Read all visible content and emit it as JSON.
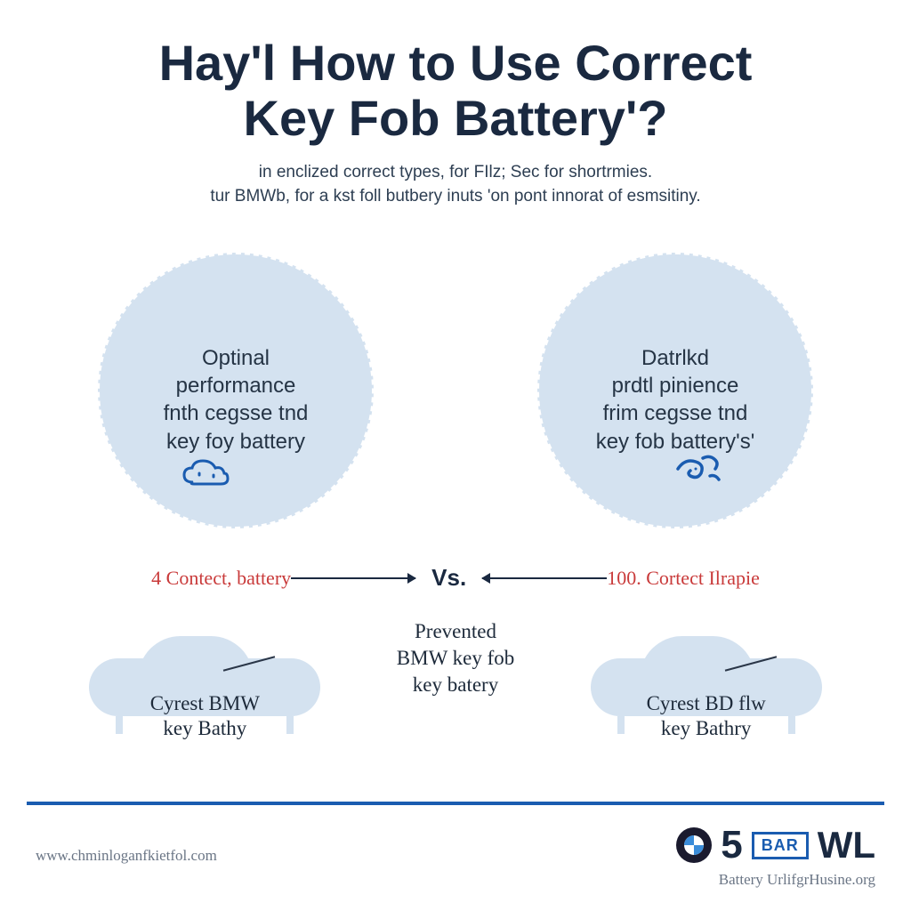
{
  "colors": {
    "title": "#1a2940",
    "subtitle": "#2d3e52",
    "circle_bg": "#d4e2f0",
    "circle_border": "#ffffff",
    "circle_text": "#253445",
    "circle_icon": "#1a5cb0",
    "vs_label": "#c93a3a",
    "arrow": "#1a2940",
    "vs_text": "#1a2940",
    "car_fill": "#d4e2f0",
    "car_line": "#2a3648",
    "car_label": "#1d2a3a",
    "center_label": "#1d2a3a",
    "footer_line": "#1a5cb0",
    "footer_url": "#6a7585",
    "bmw_blue": "#3a8cd9",
    "big5": "#1a2940",
    "bar_border": "#1a5cb0",
    "bar_text": "#1a5cb0",
    "wl": "#1a2940",
    "background": "#ffffff"
  },
  "title": {
    "line1": "Hay'l How to Use Correct",
    "line2": "Key Fob Battery'?",
    "fontsize": 56
  },
  "subtitle": {
    "line1": "in enclized correct types, for FIlz; Sec for shortrmies.",
    "line2": "tur BMWb, for a kst foll butbery inuts 'on pont innorat of esmsitiny.",
    "fontsize": 19
  },
  "circles": {
    "diameter": 310,
    "left": {
      "line1": "Optinal",
      "line2": "performance",
      "line3": "fnth cegsse tnd",
      "line4": "key foy battery",
      "fontsize": 24
    },
    "right": {
      "line1": "Datrlkd",
      "line2": "prdtl pinience",
      "line3": "frim cegsse tnd",
      "line4": "key fob battery's'",
      "fontsize": 24
    }
  },
  "vs_row": {
    "left_label": "4 Contect, battery",
    "right_label": "100. Cortect Ilrapie",
    "vs": "Vs.",
    "label_fontsize": 22,
    "vs_fontsize": 26
  },
  "bottom": {
    "left_car": {
      "line1": "Cyrest BMW",
      "line2": "key Bathy"
    },
    "center": {
      "line1": "Prevented",
      "line2": "BMW key fob",
      "line3": "key batery"
    },
    "right_car": {
      "line1": "Cyrest BD flw",
      "line2": "key Bathry"
    },
    "label_fontsize": 23
  },
  "footer": {
    "url_left": "www.chminloganfkietfol.com",
    "big5": "5",
    "bar": "BAR",
    "wl": "WL",
    "url_right": "Battery UrlifgrHusine.org",
    "url_fontsize": 17,
    "big5_fontsize": 44,
    "bar_fontsize": 18,
    "wl_fontsize": 42
  }
}
